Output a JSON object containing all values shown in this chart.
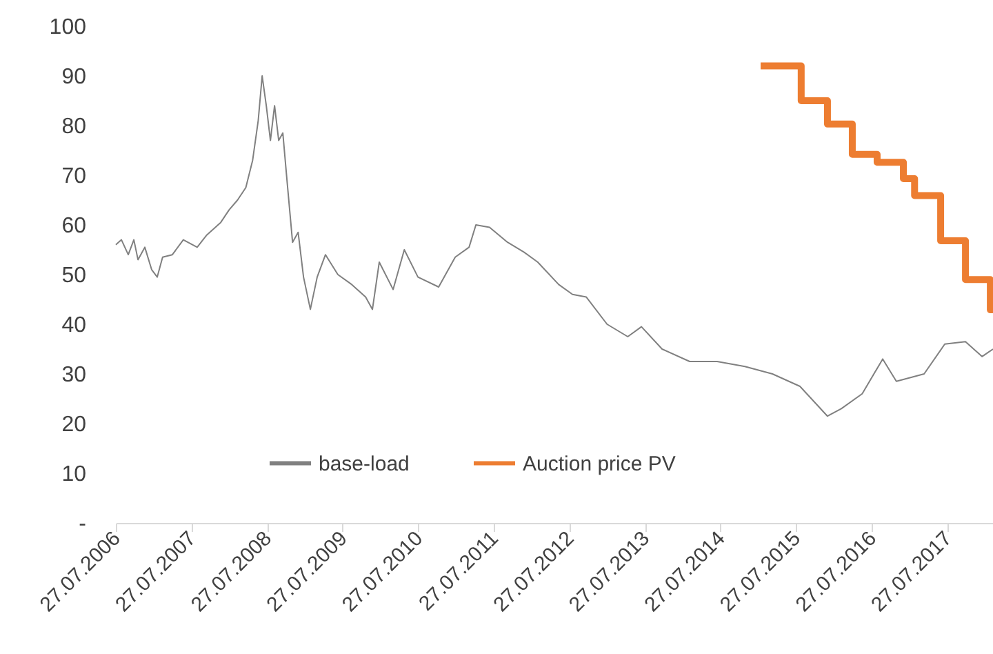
{
  "chart_data": {
    "type": "line",
    "xlim": [
      "2006-07-27",
      "2018-03-05"
    ],
    "xticks": [
      {
        "value": "2006-07-27",
        "label": "27.07.2006"
      },
      {
        "value": "2007-07-27",
        "label": "27.07.2007"
      },
      {
        "value": "2008-07-27",
        "label": "27.07.2008"
      },
      {
        "value": "2009-07-27",
        "label": "27.07.2009"
      },
      {
        "value": "2010-07-27",
        "label": "27.07.2010"
      },
      {
        "value": "2011-07-27",
        "label": "27.07.2011"
      },
      {
        "value": "2012-07-27",
        "label": "27.07.2012"
      },
      {
        "value": "2013-07-27",
        "label": "27.07.2013"
      },
      {
        "value": "2014-07-27",
        "label": "27.07.2014"
      },
      {
        "value": "2015-07-27",
        "label": "27.07.2015"
      },
      {
        "value": "2016-07-27",
        "label": "27.07.2016"
      },
      {
        "value": "2017-07-27",
        "label": "27.07.2017"
      }
    ],
    "ylim": [
      0,
      100
    ],
    "yticks": [
      {
        "value": 0,
        "label": "-"
      },
      10,
      20,
      30,
      40,
      50,
      60,
      70,
      80,
      90,
      100
    ],
    "grid": false,
    "legend": "bottom",
    "marker": "none",
    "line_style": "solid",
    "series": [
      {
        "name": "base-load",
        "color": "#808080",
        "type": "line",
        "x": [
          "2006-07-27",
          "2006-08-23",
          "2006-09-25",
          "2006-10-22",
          "2006-11-11",
          "2006-12-14",
          "2007-01-16",
          "2007-02-12",
          "2007-03-10",
          "2007-04-26",
          "2007-06-18",
          "2007-08-24",
          "2007-10-10",
          "2007-12-16",
          "2008-01-25",
          "2008-03-06",
          "2008-04-15",
          "2008-05-18",
          "2008-06-14",
          "2008-07-03",
          "2008-07-23",
          "2008-08-12",
          "2008-09-01",
          "2008-09-21",
          "2008-10-11",
          "2008-10-31",
          "2008-11-27",
          "2008-12-24",
          "2009-01-19",
          "2009-02-21",
          "2009-03-26",
          "2009-05-05",
          "2009-07-04",
          "2009-09-09",
          "2009-11-15",
          "2009-12-18",
          "2010-01-20",
          "2010-03-28",
          "2010-05-21",
          "2010-07-26",
          "2010-11-03",
          "2011-01-22",
          "2011-03-30",
          "2011-05-02",
          "2011-07-07",
          "2011-10-02",
          "2011-12-21",
          "2012-02-25",
          "2012-06-05",
          "2012-08-11",
          "2012-10-16",
          "2013-01-25",
          "2013-05-05",
          "2013-07-10",
          "2013-10-18",
          "2014-02-28",
          "2014-07-11",
          "2014-11-22",
          "2015-04-04",
          "2015-08-15",
          "2015-12-26",
          "2016-03-02",
          "2016-06-11",
          "2016-09-18",
          "2016-11-23",
          "2017-04-06",
          "2017-07-15",
          "2017-10-23",
          "2018-01-11",
          "2018-03-05"
        ],
        "values": [
          56,
          57,
          54,
          57,
          53,
          55.5,
          51,
          49.5,
          53.5,
          54,
          57,
          55.5,
          58,
          60.5,
          63,
          65,
          67.5,
          73,
          81,
          90,
          84,
          77,
          84,
          77,
          78.5,
          69,
          56.5,
          58.5,
          49.5,
          43,
          49.5,
          54,
          50,
          48,
          45.5,
          43,
          52.5,
          47,
          55,
          49.5,
          47.5,
          53.5,
          55.5,
          60,
          59.5,
          56.5,
          54.5,
          52.5,
          48,
          46,
          45.5,
          40,
          37.5,
          39.5,
          35,
          32.5,
          32.5,
          31.5,
          30,
          27.5,
          21.5,
          23,
          26,
          33,
          28.5,
          30,
          36,
          36.5,
          33.5,
          35
        ]
      },
      {
        "name": "Auction price PV",
        "color": "#ed7d31",
        "type": "step",
        "x": [
          "2015-02-06",
          "2015-08-21",
          "2015-12-26",
          "2016-04-24",
          "2016-08-22",
          "2016-12-27",
          "2017-02-19",
          "2017-06-25",
          "2017-10-23",
          "2018-02-20",
          "2018-03-05"
        ],
        "values": [
          92,
          85,
          80.3,
          74.2,
          72.6,
          69.3,
          65.9,
          56.8,
          49,
          42.9,
          42.9
        ]
      }
    ]
  }
}
